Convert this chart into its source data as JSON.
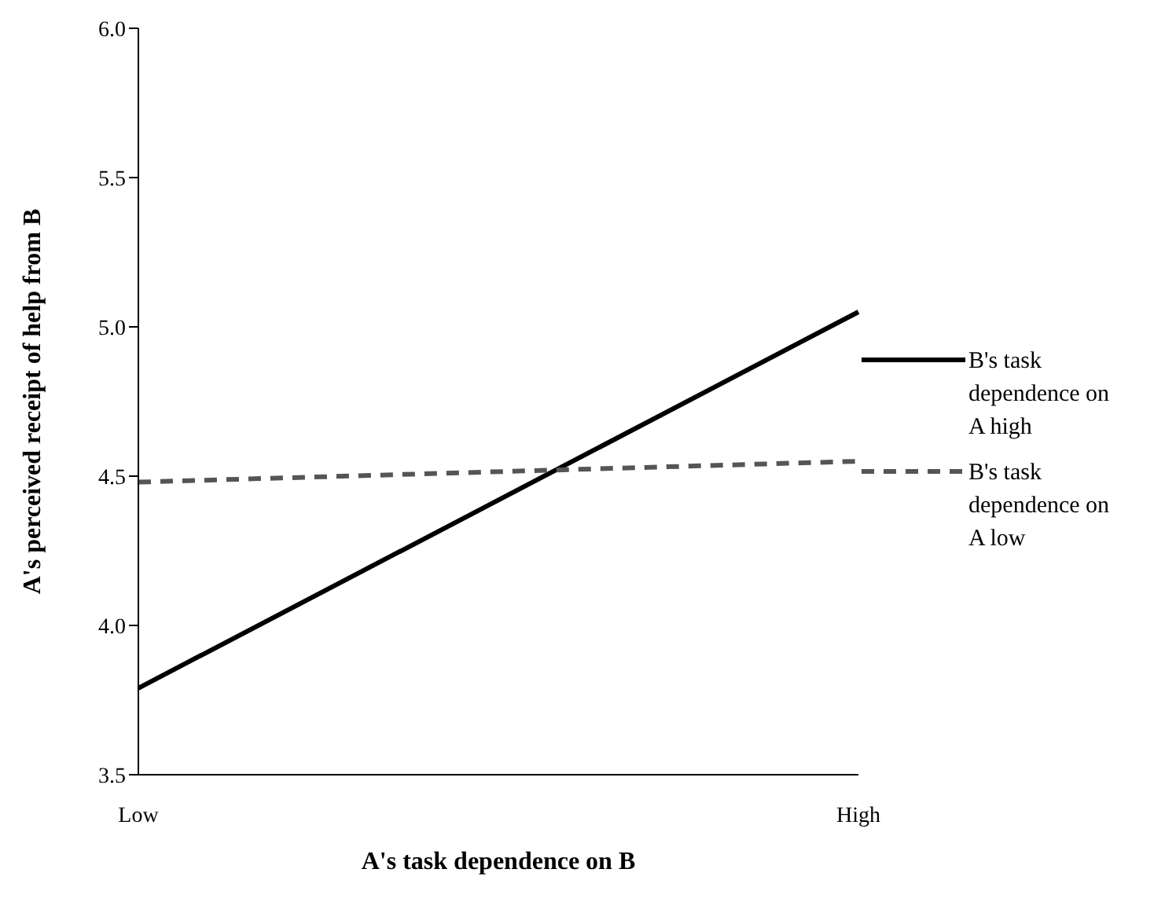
{
  "chart_data": {
    "type": "line",
    "xlabel": "A's task dependence on B",
    "ylabel": "A's perceived receipt of help from B",
    "categories": [
      "Low",
      "High"
    ],
    "series": [
      {
        "name": "B's task dependence on A high",
        "color": "#000000",
        "values": [
          3.79,
          5.05
        ],
        "line_style": "solid"
      },
      {
        "name": "B's task dependence on A low",
        "color": "#555555",
        "values": [
          4.48,
          4.55
        ],
        "line_style": "dashed"
      }
    ],
    "ylim": [
      3.5,
      6.0
    ],
    "yticks": [
      {
        "value": 3.5,
        "label": "3.5"
      },
      {
        "value": 4.0,
        "label": "4.0"
      },
      {
        "value": 4.5,
        "label": "4.5"
      },
      {
        "value": 5.0,
        "label": "5.0"
      },
      {
        "value": 5.5,
        "label": "5.5"
      },
      {
        "value": 6.0,
        "label": "6.0"
      }
    ],
    "grid": false,
    "legend": "right",
    "marker": "none"
  }
}
